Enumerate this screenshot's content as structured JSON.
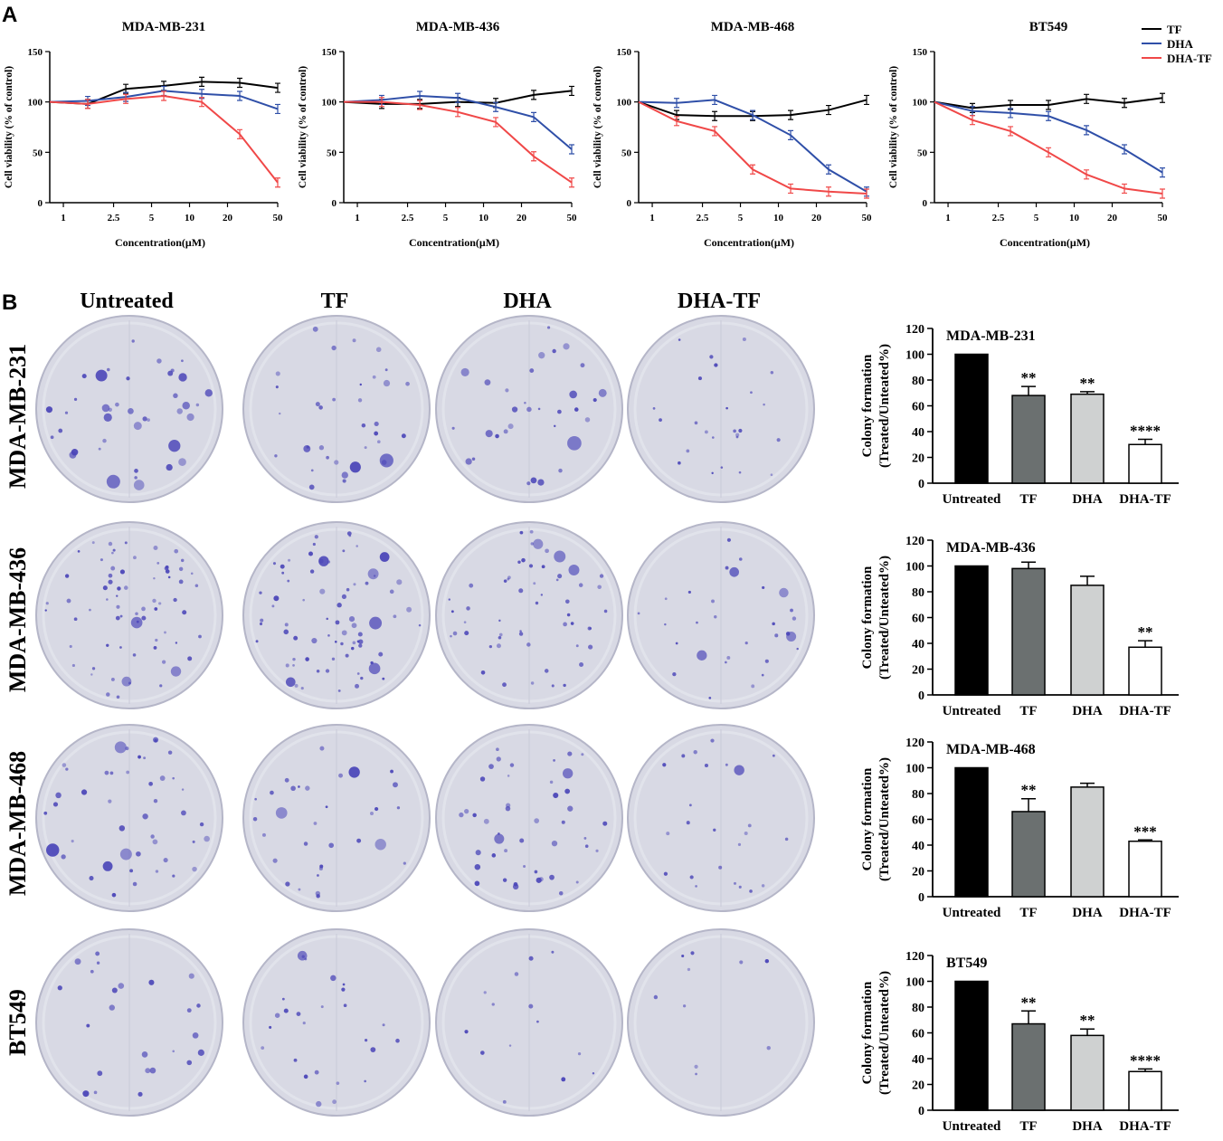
{
  "figure": {
    "panel_a_label": "A",
    "panel_b_label": "B",
    "colors": {
      "TF": "#000000",
      "DHA": "#2f4fa8",
      "DHA-TF": "#f04848",
      "bar_untreated": "#000000",
      "bar_tf": "#6b7070",
      "bar_dha": "#cfd1d1",
      "bar_dhatf": "#ffffff",
      "dish_bg": "#d8d9e4",
      "colony": "#4a45b8"
    }
  },
  "panel_a": {
    "legend": [
      "TF",
      "DHA",
      "DHA-TF"
    ],
    "x_ticks": [
      "1",
      "2.5",
      "5",
      "10",
      "20",
      "50"
    ],
    "x_tick_values": [
      1,
      2.5,
      5,
      10,
      20,
      50
    ],
    "y_ticks": [
      "0",
      "50",
      "100",
      "150"
    ],
    "xlabel": "Concentration(μM)",
    "ylabel": "Cell viability (% of control)"
  },
  "panel_b": {
    "column_headers": [
      "Untreated",
      "TF",
      "DHA",
      "DHA-TF"
    ],
    "row_labels": [
      "MDA-MB-231",
      "MDA-MB-436",
      "MDA-MB-468",
      "BT549"
    ],
    "bar_categories": [
      "Untreated",
      "TF",
      "DHA",
      "DHA-TF"
    ],
    "bar_y_ticks": [
      "0",
      "20",
      "40",
      "60",
      "80",
      "100",
      "120"
    ],
    "bar_ylabel_line1": "Colony formation",
    "bar_ylabel_line2": "(Treated/Unteated%)"
  },
  "chart_data": [
    {
      "type": "line",
      "title": "MDA-MB-231",
      "x": [
        0.78,
        1.56,
        3.125,
        6.25,
        12.5,
        25,
        50
      ],
      "xscale": "log",
      "ylim": [
        0,
        150
      ],
      "series": [
        {
          "name": "TF",
          "values": [
            100,
            98,
            113,
            116,
            120,
            119,
            114
          ]
        },
        {
          "name": "DHA",
          "values": [
            100,
            101,
            105,
            111,
            108,
            106,
            93
          ]
        },
        {
          "name": "DHA-TF",
          "values": [
            100,
            98,
            103,
            106,
            100,
            68,
            20
          ]
        }
      ]
    },
    {
      "type": "line",
      "title": "MDA-MB-436",
      "x": [
        0.78,
        1.56,
        3.125,
        6.25,
        12.5,
        25,
        50
      ],
      "xscale": "log",
      "ylim": [
        0,
        150
      ],
      "series": [
        {
          "name": "TF",
          "values": [
            100,
            98,
            98,
            100,
            99,
            107,
            111
          ]
        },
        {
          "name": "DHA",
          "values": [
            100,
            102,
            106,
            104,
            95,
            85,
            53
          ]
        },
        {
          "name": "DHA-TF",
          "values": [
            100,
            100,
            97,
            90,
            80,
            46,
            20
          ]
        }
      ]
    },
    {
      "type": "line",
      "title": "MDA-MB-468",
      "x": [
        0.78,
        1.56,
        3.125,
        6.25,
        12.5,
        25,
        50
      ],
      "xscale": "log",
      "ylim": [
        0,
        150
      ],
      "series": [
        {
          "name": "TF",
          "values": [
            100,
            87,
            86,
            86,
            87,
            92,
            102
          ]
        },
        {
          "name": "DHA",
          "values": [
            100,
            99,
            102,
            87,
            67,
            33,
            11
          ]
        },
        {
          "name": "DHA-TF",
          "values": [
            100,
            81,
            71,
            33,
            14,
            11,
            9
          ]
        }
      ]
    },
    {
      "type": "line",
      "title": "BT549",
      "x": [
        0.78,
        1.56,
        3.125,
        6.25,
        12.5,
        25,
        50
      ],
      "xscale": "log",
      "ylim": [
        0,
        150
      ],
      "series": [
        {
          "name": "TF",
          "values": [
            100,
            94,
            97,
            97,
            103,
            99,
            104
          ]
        },
        {
          "name": "DHA",
          "values": [
            100,
            91,
            89,
            86,
            72,
            53,
            30
          ]
        },
        {
          "name": "DHA-TF",
          "values": [
            100,
            82,
            71,
            50,
            28,
            14,
            9
          ]
        }
      ]
    },
    {
      "type": "bar",
      "title": "MDA-MB-231",
      "categories": [
        "Untreated",
        "TF",
        "DHA",
        "DHA-TF"
      ],
      "values": [
        100,
        68,
        69,
        30
      ],
      "errors": [
        0,
        7,
        2,
        4
      ],
      "significance": [
        "",
        "**",
        "**",
        "****"
      ],
      "ylim": [
        0,
        120
      ]
    },
    {
      "type": "bar",
      "title": "MDA-MB-436",
      "categories": [
        "Untreated",
        "TF",
        "DHA",
        "DHA-TF"
      ],
      "values": [
        100,
        98,
        85,
        37
      ],
      "errors": [
        0,
        5,
        7,
        5
      ],
      "significance": [
        "",
        "",
        "",
        "**"
      ],
      "ylim": [
        0,
        120
      ]
    },
    {
      "type": "bar",
      "title": "MDA-MB-468",
      "categories": [
        "Untreated",
        "TF",
        "DHA",
        "DHA-TF"
      ],
      "values": [
        100,
        66,
        85,
        43
      ],
      "errors": [
        0,
        10,
        3,
        1
      ],
      "significance": [
        "",
        "**",
        "",
        "***"
      ],
      "ylim": [
        0,
        120
      ]
    },
    {
      "type": "bar",
      "title": "BT549",
      "categories": [
        "Untreated",
        "TF",
        "DHA",
        "DHA-TF"
      ],
      "values": [
        100,
        67,
        58,
        30
      ],
      "errors": [
        0,
        10,
        5,
        2
      ],
      "significance": [
        "",
        "**",
        "**",
        "****"
      ],
      "ylim": [
        0,
        120
      ]
    }
  ]
}
